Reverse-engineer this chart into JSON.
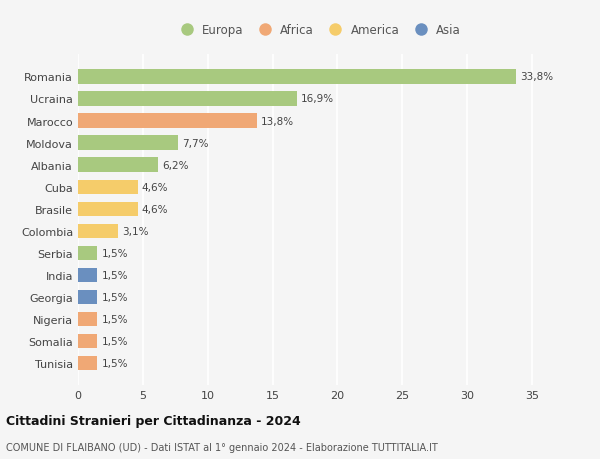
{
  "countries": [
    "Romania",
    "Ucraina",
    "Marocco",
    "Moldova",
    "Albania",
    "Cuba",
    "Brasile",
    "Colombia",
    "Serbia",
    "India",
    "Georgia",
    "Nigeria",
    "Somalia",
    "Tunisia"
  ],
  "values": [
    33.8,
    16.9,
    13.8,
    7.7,
    6.2,
    4.6,
    4.6,
    3.1,
    1.5,
    1.5,
    1.5,
    1.5,
    1.5,
    1.5
  ],
  "colors": [
    "#a8c97f",
    "#a8c97f",
    "#f0a875",
    "#a8c97f",
    "#a8c97f",
    "#f5cc6a",
    "#f5cc6a",
    "#f5cc6a",
    "#a8c97f",
    "#6a8fbf",
    "#6a8fbf",
    "#f0a875",
    "#f0a875",
    "#f0a875"
  ],
  "labels": [
    "33,8%",
    "16,9%",
    "13,8%",
    "7,7%",
    "6,2%",
    "4,6%",
    "4,6%",
    "3,1%",
    "1,5%",
    "1,5%",
    "1,5%",
    "1,5%",
    "1,5%",
    "1,5%"
  ],
  "legend_labels": [
    "Europa",
    "Africa",
    "America",
    "Asia"
  ],
  "legend_colors": [
    "#a8c97f",
    "#f0a875",
    "#f5cc6a",
    "#6a8fbf"
  ],
  "title": "Cittadini Stranieri per Cittadinanza - 2024",
  "subtitle": "COMUNE DI FLAIBANO (UD) - Dati ISTAT al 1° gennaio 2024 - Elaborazione TUTTITALIA.IT",
  "xlim": [
    0,
    37
  ],
  "background_color": "#f5f5f5",
  "grid_color": "#ffffff",
  "bar_height": 0.65
}
